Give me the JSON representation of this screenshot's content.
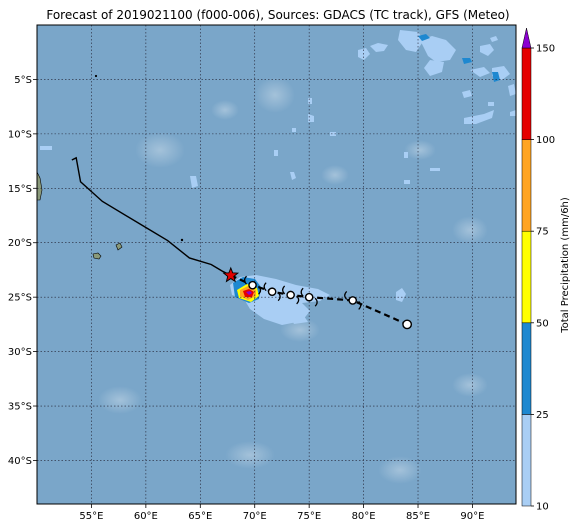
{
  "title": "Forecast of 2019021100 (f000-006), Sources: GDACS (TC track), GFS (Meteo)",
  "map": {
    "lon_range": [
      50,
      94
    ],
    "lat_range": [
      -44,
      0
    ],
    "lon_ticks": [
      {
        "value": 55,
        "label": "55°E"
      },
      {
        "value": 60,
        "label": "60°E"
      },
      {
        "value": 65,
        "label": "65°E"
      },
      {
        "value": 70,
        "label": "70°E"
      },
      {
        "value": 75,
        "label": "75°E"
      },
      {
        "value": 80,
        "label": "80°E"
      },
      {
        "value": 85,
        "label": "85°E"
      },
      {
        "value": 90,
        "label": "90°E"
      }
    ],
    "lat_ticks": [
      {
        "value": -5,
        "label": "5°S"
      },
      {
        "value": -10,
        "label": "10°S"
      },
      {
        "value": -15,
        "label": "15°S"
      },
      {
        "value": -20,
        "label": "20°S"
      },
      {
        "value": -25,
        "label": "25°S"
      },
      {
        "value": -30,
        "label": "30°S"
      },
      {
        "value": -35,
        "label": "35°S"
      },
      {
        "value": -40,
        "label": "40°S"
      }
    ],
    "grid": "dotted",
    "ocean_color": "#7aa6c9",
    "land_color": "#8a9a7a"
  },
  "track": {
    "past": [
      [
        53.2,
        -12.4
      ],
      [
        53.6,
        -12.2
      ],
      [
        54,
        -14.4
      ],
      [
        56,
        -16.2
      ],
      [
        60,
        -18.6
      ],
      [
        62,
        -19.8
      ],
      [
        64,
        -21.4
      ],
      [
        66,
        -22
      ],
      [
        67,
        -22.6
      ],
      [
        67.8,
        -23.0
      ]
    ],
    "current": [
      67.8,
      -23.0
    ],
    "forecast": [
      [
        69.8,
        -23.9
      ],
      [
        71.6,
        -24.5
      ],
      [
        73.3,
        -24.8
      ],
      [
        75.0,
        -25.0
      ],
      [
        79.0,
        -25.3
      ],
      [
        84.0,
        -27.5
      ]
    ],
    "past_color": "#000000",
    "current_marker_color": "#e00000"
  },
  "colorbar": {
    "label": "Total Precipitation (mm/6h)",
    "ticks": [
      "10",
      "25",
      "50",
      "75",
      "100",
      "150"
    ],
    "segments": [
      {
        "from": 10,
        "to": 25,
        "color": "#a9cef4"
      },
      {
        "from": 25,
        "to": 50,
        "color": "#1e88d0"
      },
      {
        "from": 50,
        "to": 75,
        "color": "#ffff00"
      },
      {
        "from": 75,
        "to": 100,
        "color": "#ffa421"
      },
      {
        "from": 100,
        "to": 150,
        "color": "#e50000"
      }
    ],
    "extend_color": "#8b00d0"
  }
}
